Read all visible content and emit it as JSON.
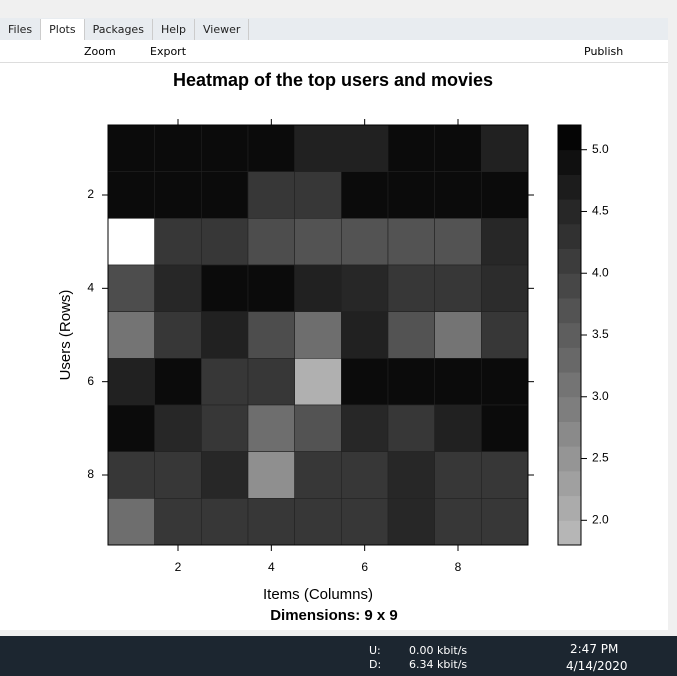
{
  "ui": {
    "tabs": [
      "Files",
      "Plots",
      "Packages",
      "Help",
      "Viewer"
    ],
    "toolbar": {
      "zoom": "Zoom",
      "export": "Export",
      "publish": "Publish"
    },
    "taskbar": {
      "up_label": "U:",
      "down_label": "D:",
      "up_rate": "0.00 kbit/s",
      "down_rate": "6.34 kbit/s",
      "time": "2:47 PM",
      "date": "4/14/2020"
    }
  },
  "chart_data": {
    "type": "heatmap",
    "title": "Heatmap of the top users and movies",
    "x_label": "Items (Columns)",
    "y_label": "Users (Rows)",
    "subtitle": "Dimensions: 9 x 9",
    "x": [
      1,
      2,
      3,
      4,
      5,
      6,
      7,
      8,
      9
    ],
    "y": [
      1,
      2,
      3,
      4,
      5,
      6,
      7,
      8,
      9
    ],
    "values": [
      [
        5,
        5,
        5,
        5,
        4.6,
        4.6,
        5,
        5,
        4.6
      ],
      [
        5,
        5,
        5,
        4.2,
        4.2,
        5,
        5,
        5,
        5
      ],
      [
        null,
        4.2,
        4.2,
        3.8,
        3.7,
        3.7,
        3.7,
        3.7,
        4.5
      ],
      [
        3.8,
        4.5,
        5,
        5,
        4.6,
        4.5,
        4.2,
        4.2,
        4.4
      ],
      [
        3.1,
        4.2,
        4.6,
        3.8,
        3.2,
        4.6,
        3.7,
        3.1,
        4.2
      ],
      [
        4.6,
        5,
        4.2,
        4.2,
        2,
        5,
        5,
        5,
        5
      ],
      [
        5,
        4.5,
        4.2,
        3.2,
        3.7,
        4.5,
        4.2,
        4.6,
        5
      ],
      [
        4.2,
        4.2,
        4.5,
        2.6,
        4.2,
        4.2,
        4.5,
        4.2,
        4.2
      ],
      [
        3.2,
        4.2,
        4.2,
        4.2,
        4.2,
        4.2,
        4.5,
        4.2,
        4.2
      ]
    ],
    "xlim": [
      0.5,
      9.5
    ],
    "xticks": [
      2,
      4,
      6,
      8
    ],
    "ylim": [
      9.5,
      0.5
    ],
    "yticks": [
      2,
      4,
      6,
      8
    ],
    "zlim": [
      1.8,
      5.2
    ],
    "zticks": [
      {
        "value": 2,
        "label": "2.0"
      },
      {
        "value": 2.5,
        "label": "2.5"
      },
      {
        "value": 3,
        "label": "3.0"
      },
      {
        "value": 3.5,
        "label": "3.5"
      },
      {
        "value": 4,
        "label": "4.0"
      },
      {
        "value": 4.5,
        "label": "4.5"
      },
      {
        "value": 5,
        "label": "5.0"
      }
    ],
    "colorscale": [
      "#bbbbbb",
      "#000000"
    ],
    "na_color": "#ffffff"
  }
}
